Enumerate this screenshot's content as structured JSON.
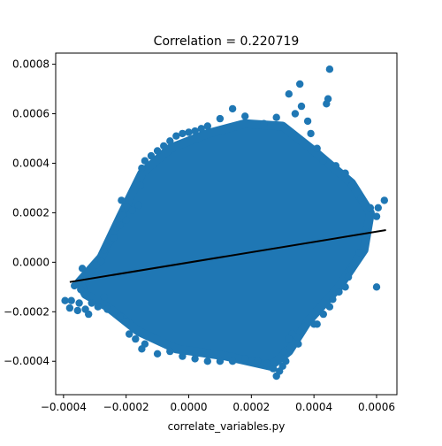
{
  "chart_data": {
    "type": "scatter",
    "title": "Correlation = 0.220719",
    "xlabel": "correlate_variables.py",
    "ylabel": "",
    "xlim": [
      -0.000425,
      0.000665
    ],
    "ylim": [
      -0.000535,
      0.000845
    ],
    "x_ticks": [
      -0.0004,
      -0.0002,
      0.0,
      0.0002,
      0.0004,
      0.0006
    ],
    "x_tick_labels": [
      "−0.0004",
      "−0.0002",
      "0.0000",
      "0.0002",
      "0.0004",
      "0.0006"
    ],
    "y_ticks": [
      -0.0004,
      -0.0002,
      0.0,
      0.0002,
      0.0004,
      0.0006,
      0.0008
    ],
    "y_tick_labels": [
      "−0.0004",
      "−0.0002",
      "0.0000",
      "0.0002",
      "0.0004",
      "0.0006",
      "0.0008"
    ],
    "grid": false,
    "legend": "none",
    "marker_color": "#1f77b4",
    "fit_line_color": "#000000",
    "fit_line": {
      "x": [
        -0.00038,
        0.00063
      ],
      "y": [
        -8e-05,
        0.00013
      ]
    },
    "series": [
      {
        "points": [
          [
            -0.000395,
            -0.000155
          ],
          [
            -0.00038,
            -0.000185
          ],
          [
            -0.000375,
            -0.000155
          ],
          [
            -0.000365,
            -9.5e-05
          ],
          [
            -0.000355,
            -0.000195
          ],
          [
            -0.00035,
            -0.000165
          ],
          [
            -0.000345,
            -0.00011
          ],
          [
            -0.00034,
            -2.5e-05
          ],
          [
            -0.00033,
            -0.00019
          ],
          [
            -0.00032,
            -0.00021
          ],
          [
            -0.00031,
            -0.000165
          ],
          [
            -0.000295,
            -1e-05
          ],
          [
            -0.00029,
            -0.00018
          ],
          [
            -0.00028,
            5e-06
          ],
          [
            -0.00027,
            5e-05
          ],
          [
            -0.00026,
            7e-05
          ],
          [
            -0.00025,
            8.5e-05
          ],
          [
            -0.00024,
            0.0001
          ],
          [
            -0.00023,
            0.00014
          ],
          [
            -0.00022,
            0.00015
          ],
          [
            -0.000215,
            0.00025
          ],
          [
            -0.00021,
            0.00019
          ],
          [
            -0.0002,
            0.00017
          ],
          [
            -0.000195,
            0.00022
          ],
          [
            -0.00019,
            -0.00029
          ],
          [
            -0.00018,
            0.00021
          ],
          [
            -0.00017,
            -0.00031
          ],
          [
            -0.00016,
            0.00023
          ],
          [
            -0.000155,
            0.00031
          ],
          [
            -0.00015,
            0.00038
          ],
          [
            -0.00014,
            0.00041
          ],
          [
            -0.00012,
            0.00043
          ],
          [
            -0.0001,
            0.00045
          ],
          [
            -8e-05,
            0.00047
          ],
          [
            -6e-05,
            0.00049
          ],
          [
            -4e-05,
            0.00051
          ],
          [
            -2e-05,
            0.00052
          ],
          [
            0.0,
            0.000525
          ],
          [
            2e-05,
            0.00053
          ],
          [
            4e-05,
            0.00054
          ],
          [
            6e-05,
            0.00055
          ],
          [
            0.0001,
            0.00058
          ],
          [
            0.00014,
            0.00062
          ],
          [
            0.00018,
            0.00059
          ],
          [
            0.00024,
            0.00056
          ],
          [
            0.00028,
            0.000585
          ],
          [
            0.00032,
            0.00068
          ],
          [
            0.00034,
            0.0006
          ],
          [
            0.000355,
            0.00072
          ],
          [
            0.00036,
            0.00063
          ],
          [
            0.00038,
            0.00057
          ],
          [
            0.00039,
            0.00052
          ],
          [
            0.00041,
            0.00046
          ],
          [
            0.00043,
            0.00041
          ],
          [
            0.000445,
            0.00066
          ],
          [
            0.00045,
            0.00078
          ],
          [
            0.00044,
            0.00064
          ],
          [
            0.00047,
            0.00039
          ],
          [
            0.0005,
            0.00036
          ],
          [
            0.00052,
            0.00031
          ],
          [
            0.00055,
            0.00026
          ],
          [
            0.00058,
            0.00022
          ],
          [
            0.000605,
            0.00022
          ],
          [
            0.000625,
            0.00025
          ],
          [
            0.0006,
            0.000185
          ],
          [
            0.00057,
            0.00012
          ],
          [
            0.000545,
            4e-05
          ],
          [
            0.00052,
            -3e-05
          ],
          [
            0.00051,
            -6e-05
          ],
          [
            0.0006,
            -0.0001
          ],
          [
            0.0005,
            -0.0001
          ],
          [
            0.00048,
            -0.00012
          ],
          [
            0.00046,
            -0.00015
          ],
          [
            0.00045,
            -0.00018
          ],
          [
            0.00043,
            -0.00021
          ],
          [
            0.00041,
            -0.00025
          ],
          [
            0.0004,
            -0.00025
          ],
          [
            0.00037,
            -0.00026
          ],
          [
            0.00035,
            -0.00033
          ],
          [
            0.000345,
            -0.0003
          ],
          [
            0.00033,
            -0.00029
          ],
          [
            0.00032,
            -0.00031
          ],
          [
            0.000305,
            -0.00036
          ],
          [
            0.00031,
            -0.0004
          ],
          [
            0.0003,
            -0.00042
          ],
          [
            0.00029,
            -0.00044
          ],
          [
            0.00028,
            -0.00046
          ],
          [
            0.00027,
            -0.00043
          ],
          [
            0.00025,
            -0.00041
          ],
          [
            0.00022,
            -0.0004
          ],
          [
            0.00018,
            -0.00039
          ],
          [
            0.00014,
            -0.0004
          ],
          [
            0.0001,
            -0.0004
          ],
          [
            6e-05,
            -0.0004
          ],
          [
            2e-05,
            -0.00039
          ],
          [
            -2e-05,
            -0.00038
          ],
          [
            -6e-05,
            -0.00036
          ],
          [
            -0.0001,
            -0.00037
          ],
          [
            -0.00014,
            -0.00033
          ],
          [
            -0.00015,
            -0.00035
          ],
          [
            -0.0002,
            -0.00024
          ],
          [
            -0.00022,
            -0.00022
          ],
          [
            -0.00026,
            -0.00019
          ],
          [
            -0.00027,
            -0.00014
          ]
        ]
      }
    ]
  }
}
